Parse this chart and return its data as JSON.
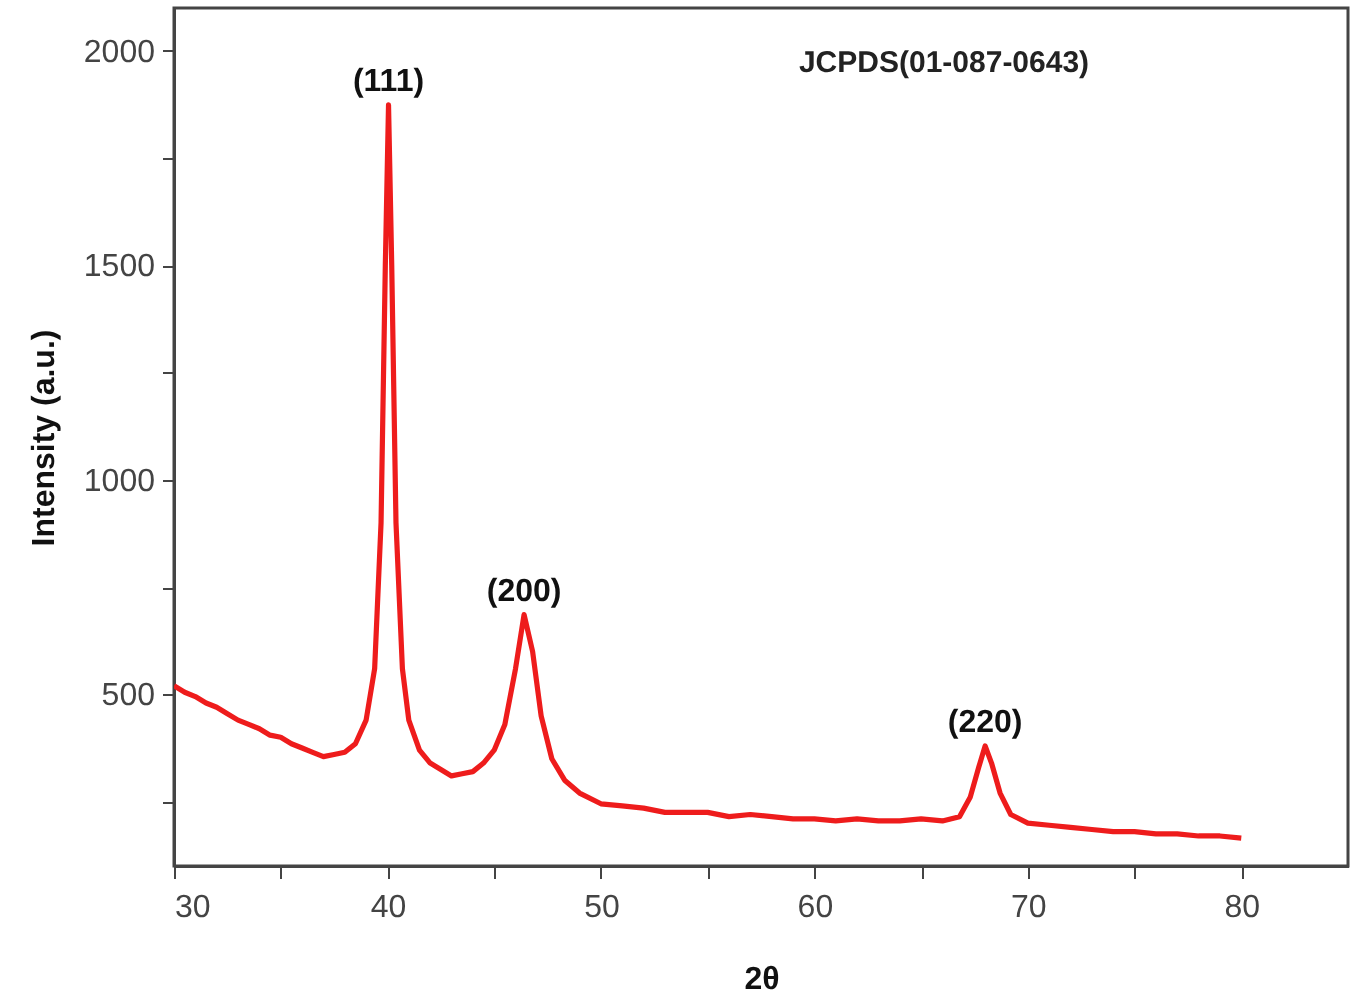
{
  "chart_data": {
    "type": "line",
    "xlabel": "2θ",
    "ylabel": "Intensity (a.u.)",
    "xlim": [
      30,
      85
    ],
    "ylim": [
      100,
      2100
    ],
    "xticks": [
      30,
      {
        "value": 35,
        "label": null
      },
      40,
      {
        "value": 45,
        "label": null
      },
      50,
      {
        "value": 55,
        "label": null
      },
      60,
      {
        "value": 65,
        "label": null
      },
      70,
      {
        "value": 75,
        "label": null
      },
      80
    ],
    "yticks": [
      {
        "value": 250,
        "label": null
      },
      500,
      {
        "value": 750,
        "label": null
      },
      1000,
      {
        "value": 1250,
        "label": null
      },
      1500,
      {
        "value": 1750,
        "label": null
      },
      2000
    ],
    "grid": false,
    "annotations": [
      "JCPDS(01-087-0643)",
      {
        "text": "(111)",
        "x": 40.05,
        "y": 1874
      },
      {
        "text": "(200)",
        "x": 46.4,
        "y": 686
      },
      {
        "text": "(220)",
        "x": 68,
        "y": 380
      }
    ],
    "series": [
      {
        "color": "#ee1c1c",
        "x": [
          30,
          30.5,
          31,
          31.5,
          32,
          32.5,
          33,
          33.5,
          34,
          34.5,
          35,
          35.5,
          36,
          36.5,
          37,
          37.5,
          38,
          38.5,
          39,
          39.4,
          39.7,
          39.9,
          40.05,
          40.2,
          40.4,
          40.7,
          41,
          41.5,
          42,
          42.5,
          43,
          43.5,
          44,
          44.5,
          45,
          45.5,
          46,
          46.4,
          46.8,
          47.2,
          47.7,
          48.3,
          49,
          50,
          51,
          52,
          53,
          54,
          55,
          56,
          57,
          58,
          59,
          60,
          61,
          62,
          63,
          64,
          65,
          66,
          66.8,
          67.3,
          67.7,
          68,
          68.3,
          68.7,
          69.2,
          70,
          71,
          72,
          73,
          74,
          75,
          76,
          77,
          78,
          79,
          80
        ],
        "values": [
          520,
          505,
          495,
          480,
          470,
          455,
          440,
          430,
          420,
          405,
          400,
          385,
          375,
          365,
          355,
          360,
          365,
          385,
          440,
          560,
          900,
          1500,
          1874,
          1500,
          900,
          560,
          440,
          370,
          340,
          325,
          310,
          315,
          320,
          340,
          370,
          430,
          560,
          686,
          600,
          450,
          350,
          300,
          270,
          245,
          240,
          235,
          225,
          225,
          225,
          215,
          220,
          215,
          210,
          210,
          205,
          210,
          205,
          205,
          210,
          205,
          215,
          260,
          330,
          380,
          340,
          270,
          220,
          200,
          195,
          190,
          185,
          180,
          180,
          175,
          175,
          170,
          170,
          165
        ]
      }
    ]
  }
}
